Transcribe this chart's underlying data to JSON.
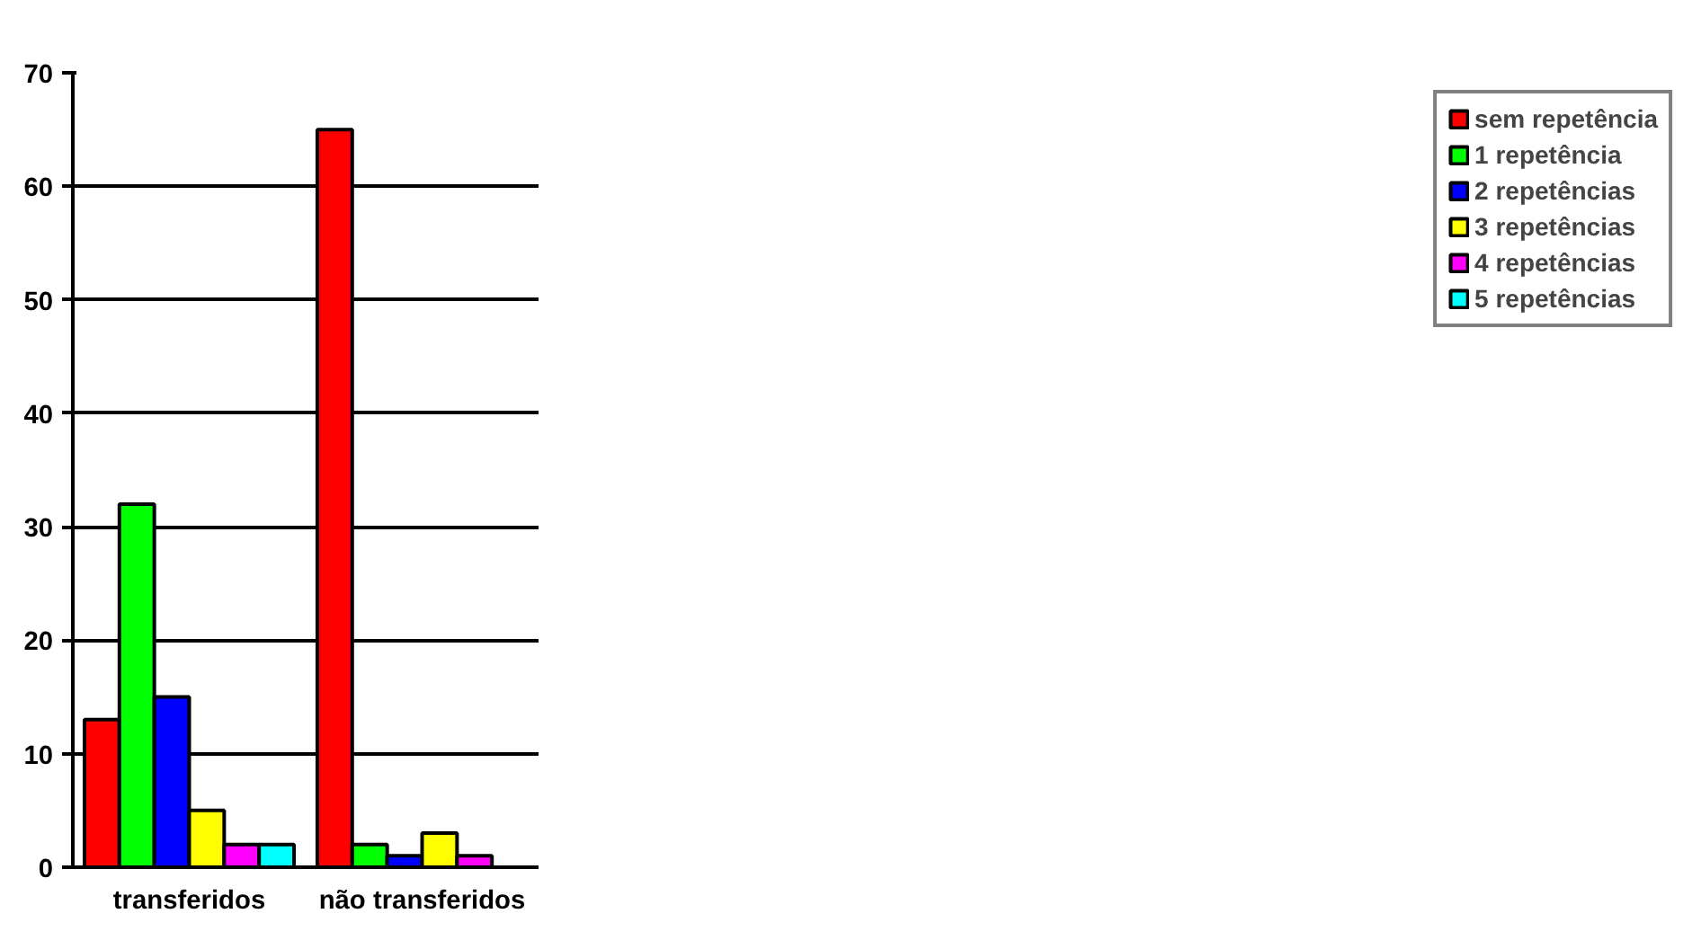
{
  "chart_data": {
    "type": "bar",
    "categories": [
      "transferidos",
      "não transferidos"
    ],
    "series": [
      {
        "name": "sem repetência",
        "color": "#ff0000",
        "values": [
          13,
          65
        ]
      },
      {
        "name": "1 repetência",
        "color": "#00ff00",
        "values": [
          32,
          2
        ]
      },
      {
        "name": "2 repetências",
        "color": "#0000ff",
        "values": [
          15,
          1
        ]
      },
      {
        "name": "3 repetências",
        "color": "#ffff00",
        "values": [
          5,
          3
        ]
      },
      {
        "name": "4 repetências",
        "color": "#ff00ff",
        "values": [
          2,
          1
        ]
      },
      {
        "name": "5 repetências",
        "color": "#00ffff",
        "values": [
          2,
          null
        ]
      }
    ],
    "ylim": [
      0,
      70
    ],
    "yticks": [
      0,
      10,
      20,
      30,
      40,
      50,
      60,
      70
    ],
    "grid": "y",
    "legend": "right"
  }
}
